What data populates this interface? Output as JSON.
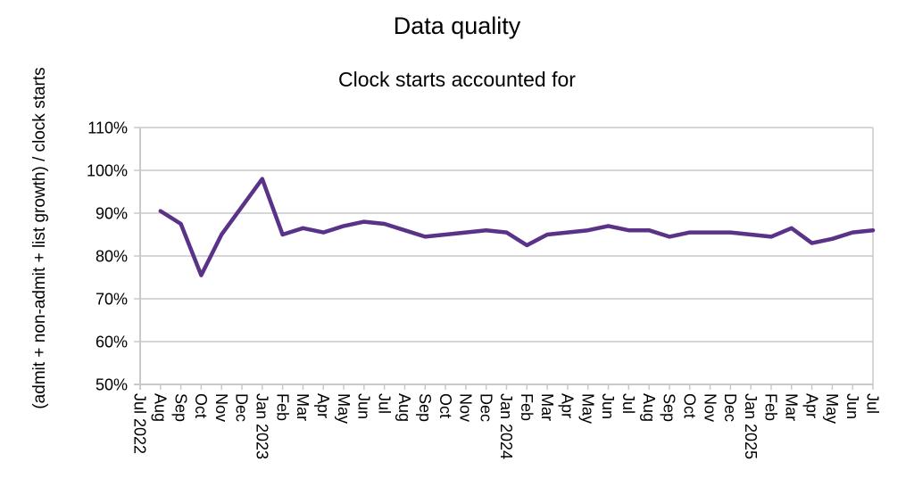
{
  "chart_data": {
    "type": "line",
    "title": "Data quality",
    "subtitle": "Clock starts accounted for",
    "ylabel": "(admit + non-admit + list growth) / clock starts",
    "categories": [
      "Jul 2022",
      "Aug",
      "Sep",
      "Oct",
      "Nov",
      "Dec",
      "Jan 2023",
      "Feb",
      "Mar",
      "Apr",
      "May",
      "Jun",
      "Jul",
      "Aug",
      "Sep",
      "Oct",
      "Nov",
      "Dec",
      "Jan 2024",
      "Feb",
      "Mar",
      "Apr",
      "May",
      "Jun",
      "Jul",
      "Aug",
      "Sep",
      "Oct",
      "Nov",
      "Dec",
      "Jan 2025",
      "Feb",
      "Mar",
      "Apr",
      "May",
      "Jun",
      "Jul"
    ],
    "values": [
      null,
      90.5,
      87.5,
      75.5,
      85,
      91.5,
      98,
      85,
      86.5,
      85.5,
      87,
      88,
      87.5,
      86,
      84.5,
      85,
      85.5,
      86,
      85.5,
      82.5,
      85,
      85.5,
      86,
      87,
      86,
      86,
      84.5,
      85.5,
      85.5,
      85.5,
      85,
      84.5,
      86.5,
      83,
      84,
      85.5,
      86
    ],
    "ylim": [
      50,
      110
    ],
    "y_tick_step": 10,
    "y_tick_suffix": "%",
    "line_color": "#5a3287",
    "grid": true,
    "legend": "none"
  }
}
